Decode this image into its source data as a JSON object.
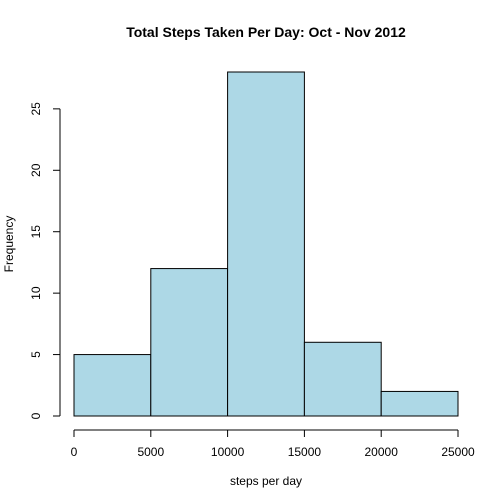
{
  "chart_data": {
    "type": "histogram",
    "title": "Total Steps Taken Per Day: Oct - Nov 2012",
    "xlabel": "steps per day",
    "ylabel": "Frequency",
    "bins": [
      {
        "start": 0,
        "end": 5000,
        "count": 5
      },
      {
        "start": 5000,
        "end": 10000,
        "count": 12
      },
      {
        "start": 10000,
        "end": 15000,
        "count": 28
      },
      {
        "start": 15000,
        "end": 20000,
        "count": 6
      },
      {
        "start": 20000,
        "end": 25000,
        "count": 2
      }
    ],
    "x_ticks": [
      0,
      5000,
      10000,
      15000,
      20000,
      25000
    ],
    "y_ticks": [
      0,
      5,
      10,
      15,
      20,
      25
    ],
    "xlim": [
      0,
      25000
    ],
    "ylim": [
      0,
      28
    ],
    "bar_color": "#add8e6",
    "grid": false,
    "legend": "none"
  }
}
